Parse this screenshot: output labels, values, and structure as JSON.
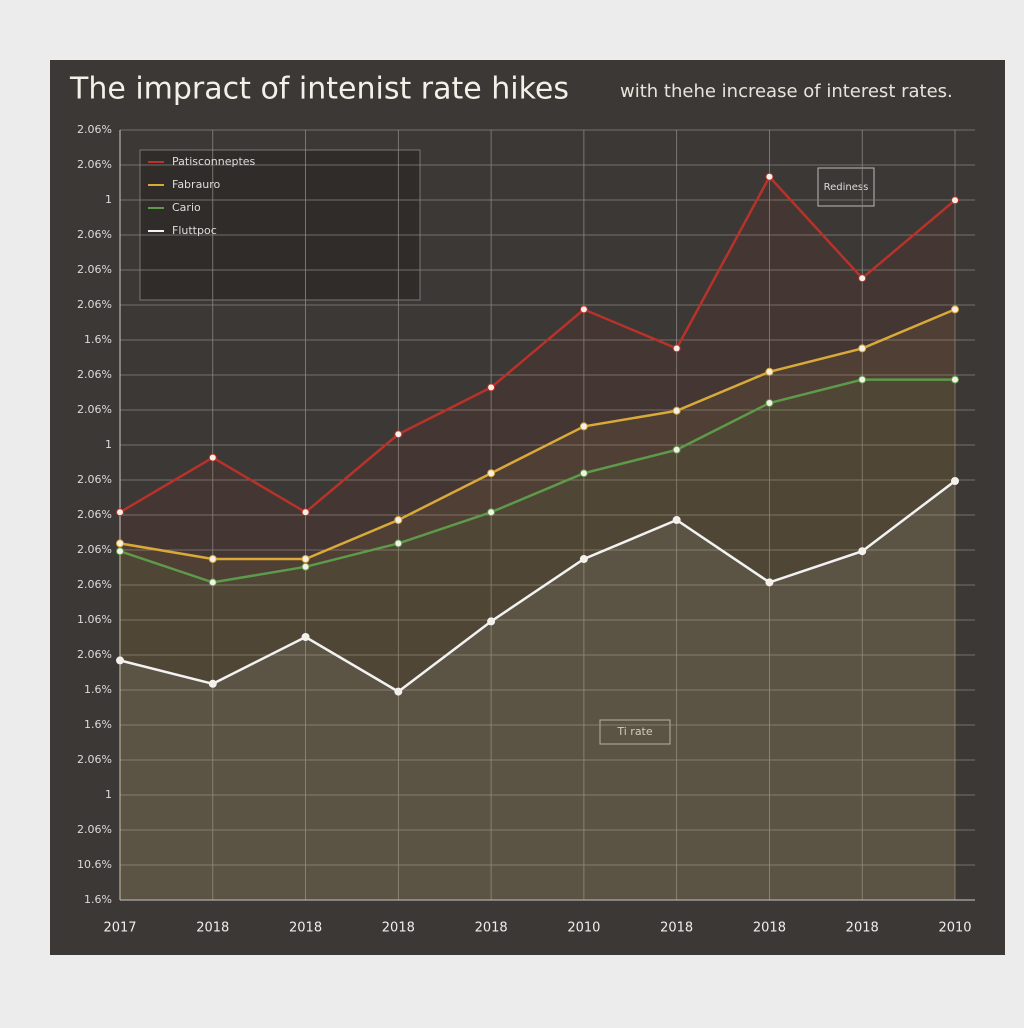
{
  "chart_data": {
    "type": "line",
    "title": "The impract of intenist rate hikes",
    "subtitle": "with thehe increase of interest rates.",
    "categories": [
      "2017",
      "2018",
      "2018",
      "2018",
      "2018",
      "2010",
      "2018",
      "2018",
      "2018",
      "2010"
    ],
    "y_labels": [
      "2.06%",
      "2.06%",
      "1",
      "2.06%",
      "2.06%",
      "2.06%",
      "1.6%",
      "2.06%",
      "2.06%",
      "1",
      "2.06%",
      "2.06%",
      "2.06%",
      "2.06%",
      "1.06%",
      "2.06%",
      "1.6%",
      "1.6%",
      "2.06%",
      "1",
      "2.06%",
      "10.6%",
      "1.6%"
    ],
    "ylim": [
      0,
      100
    ],
    "grid": true,
    "series": [
      {
        "name": "Patisconneptes",
        "color": "#b8322a",
        "values": [
          51,
          58,
          51,
          61,
          67,
          77,
          72,
          94,
          81,
          91
        ]
      },
      {
        "name": "Fabrauro",
        "color": "#d9a93a",
        "values": [
          47,
          45,
          45,
          50,
          56,
          62,
          64,
          69,
          72,
          77
        ]
      },
      {
        "name": "Cario",
        "color": "#5d9a4a",
        "values": [
          46,
          42,
          44,
          47,
          51,
          56,
          59,
          65,
          68,
          68
        ]
      },
      {
        "name": "Fluttpoc",
        "color": "#f2f2f2",
        "values": [
          32,
          29,
          35,
          28,
          37,
          45,
          50,
          42,
          46,
          55
        ]
      }
    ],
    "annotations": [
      "Ti rate",
      "Rediness"
    ]
  }
}
